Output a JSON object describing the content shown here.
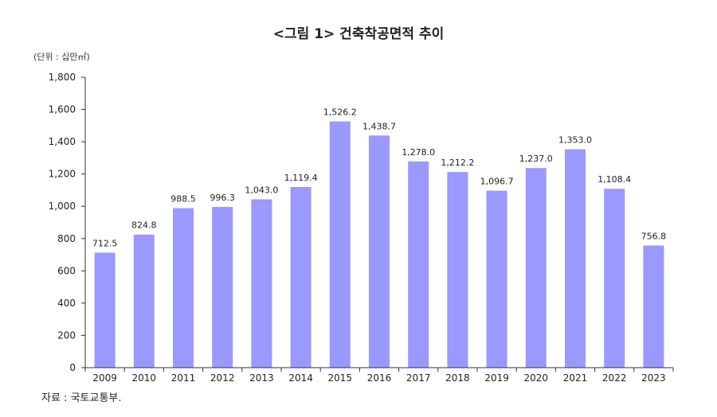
{
  "title": "<그림 1> 건축착공면적 추이",
  "unit": "(단위 : 십만㎡)",
  "source": "자료 : 국토교통부.",
  "colors": {
    "bar": "#9999FF",
    "axis": "#333333"
  },
  "chart_data": {
    "type": "bar",
    "title": "<그림 1> 건축착공면적 추이",
    "ylabel": "(단위 : 십만㎡)",
    "xlabel": "",
    "ylim": [
      0,
      1800
    ],
    "yticks": [
      0,
      200,
      400,
      600,
      800,
      1000,
      1200,
      1400,
      1600,
      1800
    ],
    "ytick_labels": [
      "0",
      "200",
      "400",
      "600",
      "800",
      "1,000",
      "1,200",
      "1,400",
      "1,600",
      "1,800"
    ],
    "grid": false,
    "categories": [
      "2009",
      "2010",
      "2011",
      "2012",
      "2013",
      "2014",
      "2015",
      "2016",
      "2017",
      "2018",
      "2019",
      "2020",
      "2021",
      "2022",
      "2023"
    ],
    "values": [
      712.5,
      824.8,
      988.5,
      996.3,
      1043.0,
      1119.4,
      1526.2,
      1438.7,
      1278.0,
      1212.2,
      1096.7,
      1237.0,
      1353.0,
      1108.4,
      756.8
    ],
    "value_labels": [
      "712.5",
      "824.8",
      "988.5",
      "996.3",
      "1,043.0",
      "1,119.4",
      "1,526.2",
      "1,438.7",
      "1,278.0",
      "1,212.2",
      "1,096.7",
      "1,237.0",
      "1,353.0",
      "1,108.4",
      "756.8"
    ]
  }
}
